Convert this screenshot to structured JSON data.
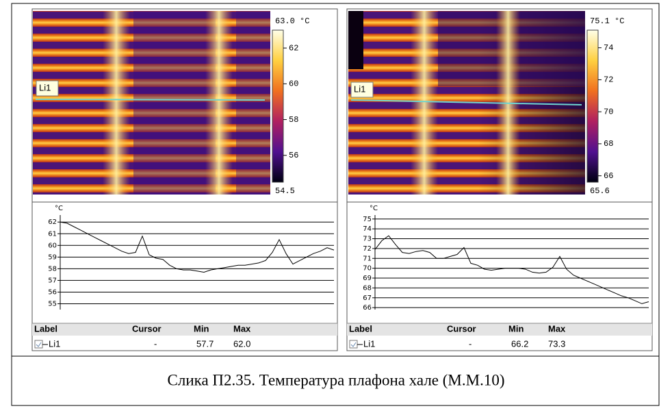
{
  "chart_data": [
    {
      "type": "line",
      "y_label": "°C",
      "ylim": [
        54.5,
        62.6
      ],
      "yticks": [
        55,
        56,
        57,
        58,
        59,
        60,
        61,
        62
      ],
      "color": "#000000",
      "values": [
        62.0,
        61.9,
        61.6,
        61.3,
        61.0,
        60.7,
        60.4,
        60.1,
        59.8,
        59.5,
        59.3,
        59.4,
        60.8,
        59.2,
        58.9,
        58.8,
        58.3,
        58.0,
        57.9,
        57.9,
        57.8,
        57.7,
        57.9,
        58.0,
        58.1,
        58.2,
        58.3,
        58.3,
        58.4,
        58.5,
        58.7,
        59.4,
        60.5,
        59.3,
        58.4,
        58.7,
        59.0,
        59.3,
        59.5,
        59.8,
        59.6
      ],
      "thermal_image": {
        "line_label": "Li1",
        "colorbar": {
          "lim": [
            54.5,
            63.0
          ],
          "ticks": [
            {
              "value": 63.0,
              "label": "63.0 °C"
            },
            62,
            60,
            58,
            56,
            54.5
          ]
        }
      },
      "table": {
        "columns": [
          "Label",
          "Cursor",
          "Min",
          "Max"
        ],
        "rows": [
          [
            "Li1",
            "-",
            "57.7",
            "62.0"
          ]
        ]
      }
    },
    {
      "type": "line",
      "y_label": "°C",
      "ylim": [
        65.8,
        75.4
      ],
      "yticks": [
        66,
        67,
        68,
        69,
        70,
        71,
        72,
        73,
        74,
        75
      ],
      "color": "#000000",
      "values": [
        71.9,
        72.8,
        73.3,
        72.4,
        71.6,
        71.5,
        71.7,
        71.8,
        71.6,
        71.0,
        71.0,
        71.2,
        71.4,
        72.1,
        70.5,
        70.3,
        69.9,
        69.8,
        69.9,
        70.0,
        70.0,
        70.0,
        69.9,
        69.6,
        69.5,
        69.6,
        70.1,
        71.2,
        69.9,
        69.3,
        69.0,
        68.7,
        68.4,
        68.1,
        67.8,
        67.5,
        67.2,
        67.0,
        66.7,
        66.4,
        66.6
      ],
      "thermal_image": {
        "line_label": "Li1",
        "colorbar": {
          "lim": [
            65.6,
            75.1
          ],
          "ticks": [
            {
              "value": 75.1,
              "label": "75.1 °C"
            },
            74,
            72,
            70,
            68,
            66,
            65.6
          ]
        }
      },
      "table": {
        "columns": [
          "Label",
          "Cursor",
          "Min",
          "Max"
        ],
        "rows": [
          [
            "Li1",
            "-",
            "66.2",
            "73.3"
          ]
        ]
      }
    }
  ],
  "caption": "Слика П2.35. Температура плафона хале (М.М.10)"
}
